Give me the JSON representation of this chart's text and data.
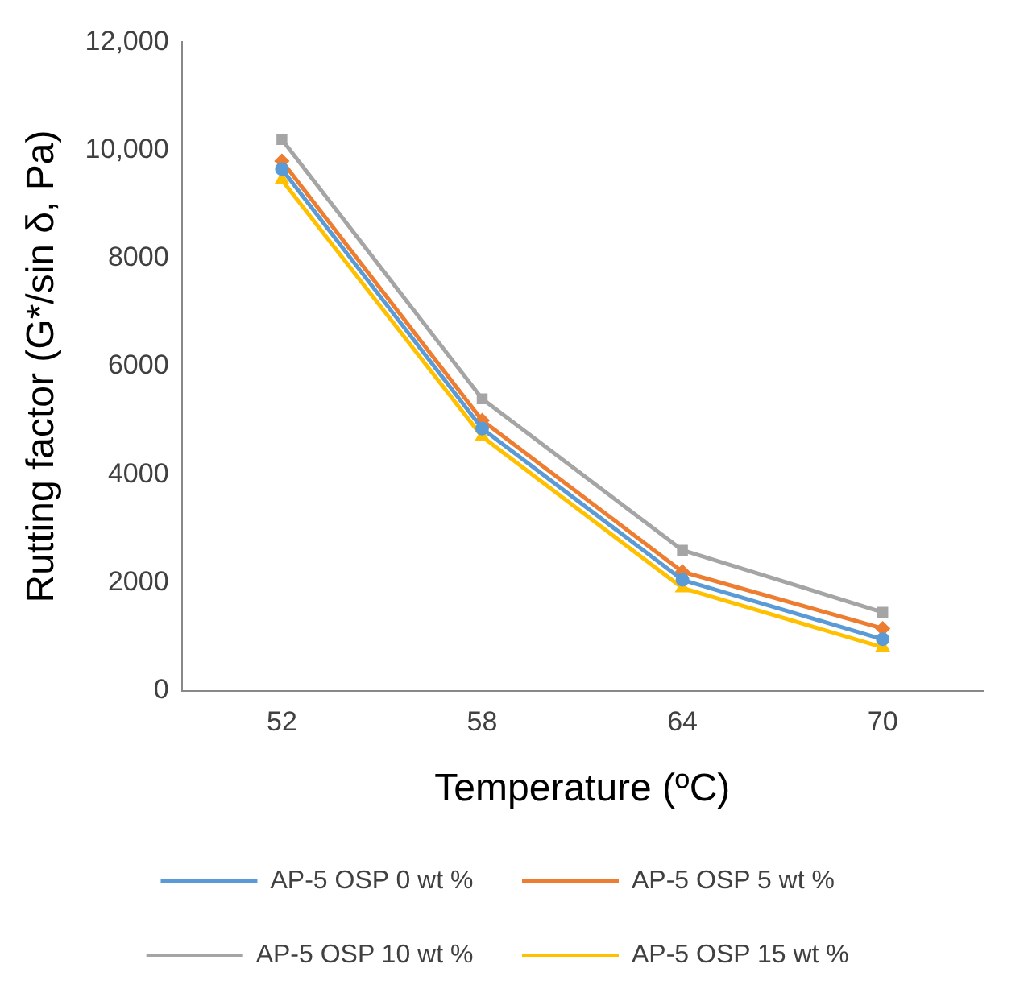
{
  "chart_data": {
    "type": "line",
    "xlabel": "Temperature (ºC)",
    "ylabel": "Rutting factor (G*/sin δ, Pa)",
    "categories": [
      "52",
      "58",
      "64",
      "70"
    ],
    "series": [
      {
        "name": "AP-5 OSP 0 wt %",
        "color": "#5b9bd5",
        "marker": "circle",
        "values": [
          9650,
          4850,
          2050,
          950
        ]
      },
      {
        "name": "AP-5 OSP 5 wt %",
        "color": "#ed7d31",
        "marker": "diamond",
        "values": [
          9800,
          5000,
          2200,
          1150
        ]
      },
      {
        "name": "AP-5 OSP 10 wt %",
        "color": "#a5a5a5",
        "marker": "square",
        "values": [
          10200,
          5400,
          2600,
          1450
        ]
      },
      {
        "name": "AP-5 OSP 15 wt %",
        "color": "#ffc000",
        "marker": "triangle",
        "values": [
          9450,
          4700,
          1900,
          800
        ]
      }
    ],
    "ylim": [
      0,
      12000
    ],
    "yticks": [
      0,
      2000,
      4000,
      6000,
      8000,
      {
        "value": 10000,
        "label": "10,000"
      },
      {
        "value": 12000,
        "label": "12,000"
      }
    ],
    "grid": false,
    "legend": "bottom",
    "line_style": "solid"
  }
}
